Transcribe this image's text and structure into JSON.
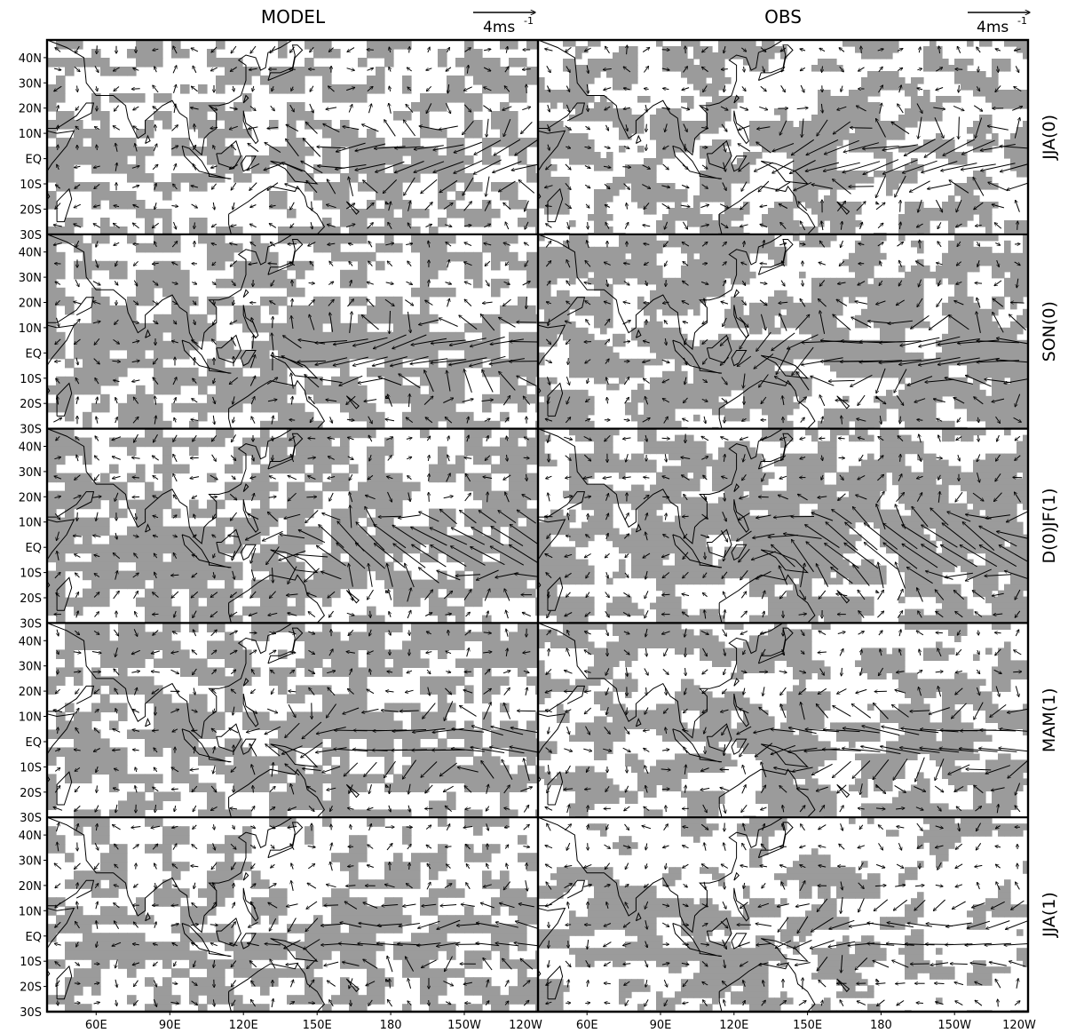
{
  "figure": {
    "columns": [
      {
        "title": "MODEL",
        "scale_label": "4ms",
        "scale_exp": "-1"
      },
      {
        "title": "OBS",
        "scale_label": "4ms",
        "scale_exp": "-1"
      }
    ],
    "rows": [
      {
        "season": "JJA(0)"
      },
      {
        "season": "SON(0)"
      },
      {
        "season": "D(0)JF(1)"
      },
      {
        "season": "MAM(1)"
      },
      {
        "season": "JJA(1)"
      }
    ],
    "lat_ticks": [
      "40N",
      "30N",
      "20N",
      "10N",
      "EQ",
      "10S",
      "20S"
    ],
    "lat_bottom": "30S",
    "lon_ticks": [
      "60E",
      "90E",
      "120E",
      "150E",
      "180",
      "150W"
    ],
    "lon_edge": "120W",
    "lon_range_deg": [
      40,
      240
    ],
    "lat_range_deg": [
      -30,
      47
    ],
    "lat_tick_values": [
      40,
      30,
      20,
      10,
      0,
      -10,
      -20,
      -30
    ],
    "lon_tick_values": [
      60,
      90,
      120,
      150,
      180,
      210,
      240
    ],
    "colors": {
      "shading": "#9b9b9b",
      "vectors": "#000000",
      "coastline": "#000000",
      "frame": "#000000"
    }
  }
}
